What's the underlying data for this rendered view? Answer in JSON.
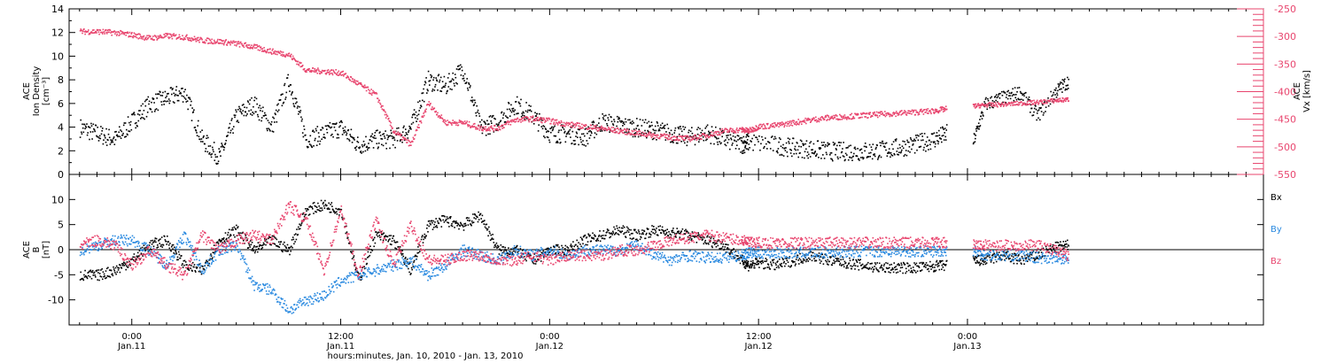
{
  "chart_data": [
    {
      "type": "scatter",
      "panel": "top",
      "ylabel_left": [
        "ACE",
        "Ion Density",
        "[cm⁻³]"
      ],
      "ylabel_right": [
        "ACE",
        "Vx [km/s]"
      ],
      "ylim_left": [
        0,
        14
      ],
      "yticks_left": [
        0,
        2,
        4,
        6,
        8,
        10,
        12,
        14
      ],
      "ylim_right": [
        -550,
        -250
      ],
      "yticks_right": [
        -550,
        -500,
        -450,
        -400,
        -350,
        -300,
        -250
      ],
      "colors": {
        "density": "#000000",
        "vx": "#e8456e"
      },
      "series": [
        {
          "axis": "left",
          "color": "#000000",
          "x": [
            -3,
            -2,
            -1,
            0,
            1,
            2,
            3,
            4,
            5,
            6,
            7,
            8,
            9,
            10,
            11,
            12,
            13,
            14,
            15,
            16,
            17,
            18,
            19,
            20,
            21,
            22,
            23,
            24,
            25,
            26,
            27,
            28,
            29,
            30,
            31,
            32,
            33,
            34,
            35,
            35.4,
            37,
            38,
            39,
            40,
            41,
            42,
            43,
            44,
            45,
            46,
            46.8
          ],
          "y": [
            4,
            3.5,
            3,
            4.5,
            6,
            6.5,
            7,
            3,
            1.5,
            5,
            6,
            4,
            8,
            3,
            3.5,
            4,
            2.5,
            3,
            3,
            4,
            8,
            7.5,
            9,
            4,
            4.5,
            6,
            5,
            3.5,
            3.5,
            3.2,
            4.5,
            4.2,
            4,
            3.8,
            3.5,
            3.2,
            3.6,
            3,
            2.6,
            2.8,
            2.5,
            2.3,
            2.2,
            2,
            2,
            2,
            2.1,
            2.3,
            2.6,
            3,
            3.5
          ]
        },
        {
          "x": [
            48.3,
            49,
            50,
            51,
            52,
            53,
            53.8
          ],
          "y": [
            2.8,
            6,
            6.5,
            7,
            5,
            7,
            8
          ]
        },
        {
          "axis": "right",
          "color": "#e8456e",
          "x": [
            -3,
            -2,
            -1,
            0,
            1,
            2,
            3,
            4,
            5,
            6,
            7,
            8,
            9,
            10,
            11,
            12,
            13,
            14,
            15,
            16,
            17,
            18,
            19,
            20,
            21,
            22,
            23,
            24,
            25,
            26,
            27,
            28,
            29,
            30,
            31,
            32,
            33,
            34,
            35,
            35.4,
            36,
            37,
            38,
            39,
            40,
            41,
            42,
            43,
            44,
            45,
            46,
            46.8
          ],
          "y": [
            -290,
            -290,
            -292,
            -296,
            -302,
            -298,
            -300,
            -306,
            -308,
            -312,
            -318,
            -326,
            -332,
            -360,
            -362,
            -365,
            -385,
            -405,
            -470,
            -495,
            -420,
            -455,
            -455,
            -465,
            -465,
            -450,
            -448,
            -452,
            -458,
            -462,
            -466,
            -470,
            -474,
            -478,
            -482,
            -484,
            -478,
            -470,
            -468,
            -470,
            -462,
            -460,
            -455,
            -450,
            -446,
            -444,
            -442,
            -440,
            -438,
            -436,
            -434,
            -430
          ]
        },
        {
          "x": [
            48.3,
            49,
            50,
            51,
            52,
            53,
            53.8
          ],
          "y": [
            -425,
            -423,
            -422,
            -420,
            -418,
            -415,
            -413
          ]
        }
      ]
    },
    {
      "type": "scatter",
      "panel": "bottom",
      "ylabel_left": [
        "ACE",
        "B",
        "[nT]"
      ],
      "ylim": [
        -15,
        15
      ],
      "yticks": [
        -10,
        -5,
        0,
        5,
        10
      ],
      "zero_line": true,
      "legend": [
        {
          "label": "Bx",
          "color": "#000000"
        },
        {
          "label": "By",
          "color": "#2b8ae0"
        },
        {
          "label": "Bz",
          "color": "#e8456e"
        }
      ],
      "series": [
        {
          "name": "Bx",
          "color": "#000000",
          "x": [
            -3,
            -2,
            -1,
            0,
            1,
            2,
            3,
            4,
            5,
            6,
            7,
            8,
            9,
            10,
            11,
            12,
            13,
            14,
            15,
            16,
            17,
            18,
            19,
            20,
            21,
            22,
            23,
            24,
            25,
            26,
            27,
            28,
            29,
            30,
            31,
            32,
            33,
            34,
            35,
            35.4,
            36,
            37,
            38,
            39,
            40,
            41,
            42,
            43,
            44,
            45,
            46,
            46.8
          ],
          "y": [
            -5,
            -5,
            -4,
            -2,
            1,
            2,
            -3,
            -4,
            2,
            4,
            0,
            2,
            0,
            8,
            9,
            8,
            -6,
            3,
            2,
            -4,
            5,
            6,
            5,
            7,
            0,
            0,
            -2,
            0,
            0,
            2,
            3,
            4,
            3,
            4,
            3.5,
            3,
            2,
            1,
            -2,
            -3,
            -2.5,
            -3,
            -2,
            -1,
            -2,
            -2.5,
            -3,
            -3.5,
            -3.5,
            -3.5,
            -3.2,
            -3
          ]
        },
        {
          "x": [
            48.3,
            49,
            50,
            51,
            52,
            53,
            53.8
          ],
          "y": [
            -2,
            -2,
            -1,
            -2,
            -1,
            0.5,
            1
          ]
        },
        {
          "name": "By",
          "color": "#2b8ae0",
          "x": [
            -3,
            -2,
            -1,
            0,
            1,
            2,
            3,
            4,
            5,
            6,
            7,
            8,
            9,
            10,
            11,
            12,
            13,
            14,
            15,
            16,
            17,
            18,
            19,
            20,
            21,
            22,
            23,
            24,
            25,
            26,
            27,
            28,
            29,
            30,
            31,
            32,
            33,
            34,
            35,
            35.4,
            36,
            37,
            38,
            39,
            40,
            41,
            42,
            43,
            44,
            45,
            46,
            46.8
          ],
          "y": [
            0,
            1,
            2,
            2,
            0,
            -3,
            3,
            -4,
            0,
            1,
            -7,
            -8,
            -12,
            -10,
            -9,
            -6,
            -5,
            -4,
            -3,
            -2,
            -5,
            -3,
            0,
            -1,
            -2,
            0,
            -1,
            0,
            -1,
            0,
            0,
            0,
            1,
            -1,
            -2,
            -1,
            -1.5,
            -1.5,
            -1,
            -0.5,
            -0.5,
            -0.5,
            -0.5,
            -0.5,
            -0.4,
            -0.3,
            -0.2,
            -0.2,
            -0.2,
            -0.2,
            -0.2,
            0
          ]
        },
        {
          "x": [
            48.3,
            49,
            50,
            51,
            52,
            53,
            53.8
          ],
          "y": [
            0,
            -1,
            -1,
            -1,
            -1.5,
            -1.5,
            -2
          ]
        },
        {
          "name": "Bz",
          "color": "#e8456e",
          "x": [
            -3,
            -2,
            -1,
            0,
            1,
            2,
            3,
            4,
            5,
            6,
            7,
            8,
            9,
            10,
            11,
            12,
            13,
            14,
            15,
            16,
            17,
            18,
            19,
            20,
            21,
            22,
            23,
            24,
            25,
            26,
            27,
            28,
            29,
            30,
            31,
            32,
            33,
            34,
            35,
            35.4,
            36,
            37,
            38,
            39,
            40,
            41,
            42,
            43,
            44,
            45,
            46,
            46.8
          ],
          "y": [
            1,
            2,
            1,
            -3,
            0,
            -3,
            -5,
            3,
            0,
            2,
            3,
            2,
            9,
            6,
            -4,
            8,
            -5,
            6,
            -3,
            5,
            -2,
            -2,
            -1,
            -1,
            -2,
            -2,
            -1,
            -2,
            -1,
            -1,
            -1,
            0,
            0,
            1,
            2,
            2.5,
            3,
            2.5,
            2,
            1.5,
            1.5,
            1.5,
            1.5,
            1.5,
            1.5,
            1.5,
            1.5,
            1.5,
            1.5,
            1.5,
            1.5,
            1.5
          ]
        },
        {
          "x": [
            48.3,
            49,
            50,
            51,
            52,
            53,
            53.8
          ],
          "y": [
            1,
            1,
            1,
            1,
            1,
            0,
            -1
          ]
        }
      ]
    }
  ],
  "x_axis": {
    "title": "hours:minutes, Jan. 10, 2010 - Jan. 13, 2010",
    "x_units": "hours since 2010-01-11 00:00",
    "xlim": [
      -3.6,
      65
    ],
    "ticks": [
      {
        "value": 0,
        "time": "0:00",
        "date": "Jan.11"
      },
      {
        "value": 12,
        "time": "12:00",
        "date": "Jan.11"
      },
      {
        "value": 24,
        "time": "0:00",
        "date": "Jan.12"
      },
      {
        "value": 36,
        "time": "12:00",
        "date": "Jan.12"
      },
      {
        "value": 48,
        "time": "0:00",
        "date": "Jan.13"
      }
    ]
  }
}
